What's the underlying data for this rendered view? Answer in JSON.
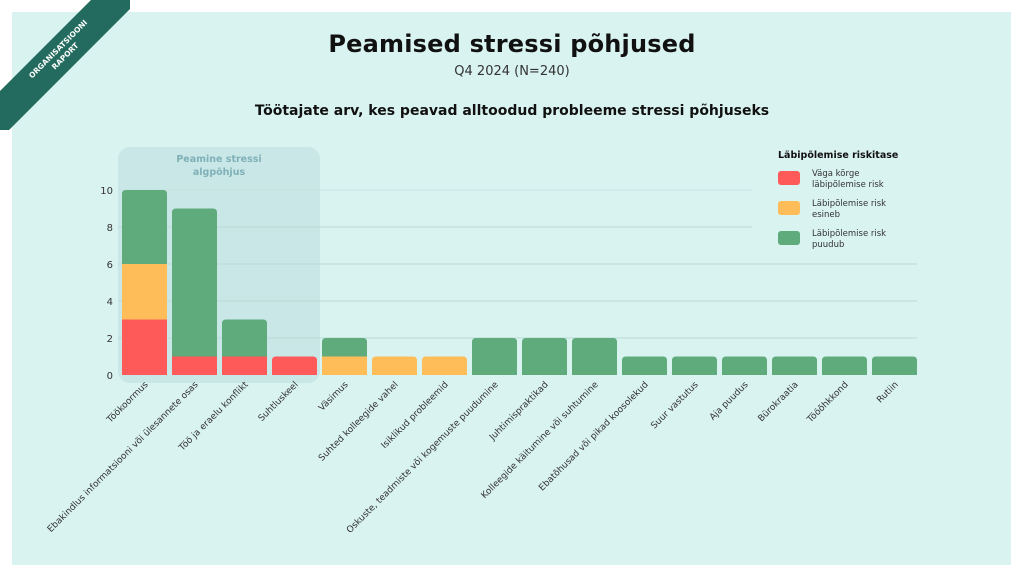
{
  "ribbon": {
    "line1": "ORGANISATSIOONI",
    "line2": "RAPORT"
  },
  "header": {
    "title": "Peamised stressi põhjused",
    "subtitle": "Q4 2024 (N=240)",
    "chart_title": "Töötajate arv, kes peavad alltoodud probleeme stressi põhjuseks"
  },
  "colors": {
    "very_high": "#ff5a5a",
    "present": "#ffbd59",
    "none": "#5fab7c",
    "highlight": "#c5e4e4"
  },
  "chart_data": {
    "type": "bar",
    "stacked": true,
    "title": "Töötajate arv, kes peavad alltoodud probleeme stressi põhjuseks",
    "xlabel": "",
    "ylabel": "",
    "ylim": [
      0,
      10
    ],
    "yticks": [
      0,
      2,
      4,
      6,
      8,
      10
    ],
    "grid": true,
    "legend_title": "Läbipõlemise riskitase",
    "legend_position": "top-right",
    "annotation": {
      "label_line1": "Peamine stressi",
      "label_line2": "algpõhjus",
      "covers_categories": 4
    },
    "categories": [
      "Töökoormus",
      "Ebakindlus informatsiooni või ülesannete osas",
      "Töö ja eraelu konflikt",
      "Suhtluskeel",
      "Väsimus",
      "Suhted kolleegide vahel",
      "Isiklikud probleemid",
      "Oskuste, teadmiste või kogemuste puudumine",
      "Juhtimispraktikad",
      "Kolleegide käitumine või suhtumine",
      "Ebatõhusad või pikad koosolekud",
      "Suur vastutus",
      "Aja puudus",
      "Bürokraatia",
      "Tööõhkkond",
      "Rutiin"
    ],
    "series": [
      {
        "name": "Väga kõrge läbipõlemise risk",
        "color_key": "very_high",
        "values": [
          3,
          1,
          1,
          1,
          0,
          0,
          0,
          0,
          0,
          0,
          0,
          0,
          0,
          0,
          0,
          0
        ]
      },
      {
        "name": "Läbipõlemise risk esineb",
        "color_key": "present",
        "values": [
          3,
          0,
          0,
          0,
          1,
          1,
          1,
          0,
          0,
          0,
          0,
          0,
          0,
          0,
          0,
          0
        ]
      },
      {
        "name": "Läbipõlemise risk puudub",
        "color_key": "none",
        "values": [
          4,
          8,
          2,
          0,
          1,
          0,
          0,
          2,
          2,
          2,
          1,
          1,
          1,
          1,
          1,
          1
        ]
      }
    ]
  }
}
